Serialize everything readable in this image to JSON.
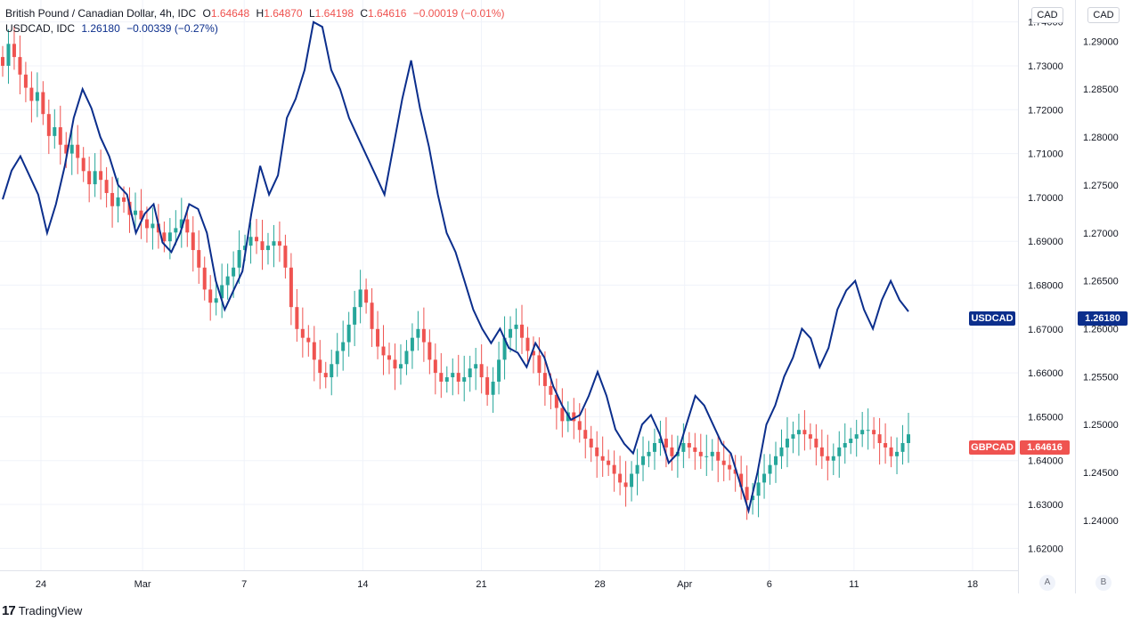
{
  "legend": {
    "main": {
      "symbol": "British Pound / Canadian Dollar, 4h, IDC",
      "o_label": "O",
      "o": "1.64648",
      "h_label": "H",
      "h": "1.64870",
      "l_label": "L",
      "l": "1.64198",
      "c_label": "C",
      "c": "1.64616",
      "change": "−0.00019 (−0.01%)"
    },
    "second": {
      "symbol": "USDCAD, IDC",
      "value": "1.26180",
      "change": "−0.00339 (−0.27%)"
    }
  },
  "axes": {
    "currency_a": "CAD",
    "currency_b": "CAD",
    "scale_a_label": "A",
    "scale_b_label": "B",
    "left_ticks": [
      "1.74000",
      "1.73000",
      "1.72000",
      "1.71000",
      "1.70000",
      "1.69000",
      "1.68000",
      "1.67000",
      "1.66000",
      "1.65000",
      "1.64000",
      "1.63000",
      "1.62000"
    ],
    "right_ticks": [
      "1.29000",
      "1.28500",
      "1.28000",
      "1.27500",
      "1.27000",
      "1.26500",
      "1.26000",
      "1.25500",
      "1.25000",
      "1.24500",
      "1.24000"
    ],
    "x_ticks": [
      "24",
      "Mar",
      "7",
      "14",
      "21",
      "28",
      "Apr",
      "6",
      "11",
      "18"
    ]
  },
  "tags": {
    "usdcad_label": "USDCAD",
    "usdcad_value": "1.26180",
    "gbpcad_label": "GBPCAD",
    "gbpcad_value": "1.64616"
  },
  "footer": {
    "brand": "TradingView",
    "logo": "17"
  },
  "colors": {
    "up": "#26a69a",
    "down": "#ef5350",
    "line": "#0b2e8c",
    "grid": "#f0f3fa"
  },
  "chart_data": [
    {
      "type": "candlestick",
      "name": "GBPCAD",
      "y_axis": "A",
      "ylim": [
        1.615,
        1.745
      ],
      "x_range_days": [
        0,
        54
      ],
      "x_ticks_days": {
        "24": 3,
        "Mar": 9,
        "7": 15,
        "14": 22,
        "21": 29,
        "28": 36,
        "Apr": 41,
        "6": 46,
        "11": 51,
        "18": 58
      },
      "close": [
        1.73,
        1.735,
        1.732,
        1.728,
        1.725,
        1.722,
        1.724,
        1.719,
        1.714,
        1.716,
        1.712,
        1.71,
        1.712,
        1.709,
        1.706,
        1.703,
        1.706,
        1.704,
        1.701,
        1.698,
        1.7,
        1.699,
        1.696,
        1.697,
        1.695,
        1.693,
        1.694,
        1.692,
        1.69,
        1.692,
        1.693,
        1.695,
        1.692,
        1.688,
        1.684,
        1.679,
        1.676,
        1.677,
        1.68,
        1.682,
        1.684,
        1.688,
        1.689,
        1.691,
        1.69,
        1.688,
        1.689,
        1.69,
        1.689,
        1.684,
        1.675,
        1.67,
        1.668,
        1.667,
        1.663,
        1.66,
        1.659,
        1.662,
        1.665,
        1.667,
        1.671,
        1.675,
        1.679,
        1.676,
        1.67,
        1.666,
        1.664,
        1.663,
        1.661,
        1.662,
        1.665,
        1.668,
        1.67,
        1.667,
        1.663,
        1.66,
        1.658,
        1.659,
        1.66,
        1.658,
        1.659,
        1.661,
        1.662,
        1.659,
        1.655,
        1.658,
        1.663,
        1.668,
        1.67,
        1.671,
        1.668,
        1.665,
        1.664,
        1.66,
        1.657,
        1.655,
        1.652,
        1.649,
        1.651,
        1.649,
        1.647,
        1.645,
        1.643,
        1.641,
        1.64,
        1.639,
        1.637,
        1.635,
        1.634,
        1.637,
        1.639,
        1.641,
        1.642,
        1.644,
        1.645,
        1.643,
        1.641,
        1.642,
        1.644,
        1.643,
        1.642,
        1.641,
        1.641,
        1.642,
        1.64,
        1.639,
        1.638,
        1.637,
        1.634,
        1.631,
        1.632,
        1.635,
        1.637,
        1.639,
        1.641,
        1.643,
        1.645,
        1.646,
        1.647,
        1.646,
        1.645,
        1.643,
        1.641,
        1.64,
        1.641,
        1.643,
        1.644,
        1.645,
        1.646,
        1.647,
        1.647,
        1.646,
        1.644,
        1.643,
        1.641,
        1.642,
        1.644,
        1.646
      ]
    },
    {
      "type": "line",
      "name": "USDCAD",
      "y_axis": "B",
      "ylim": [
        1.2348,
        1.2943
      ],
      "values": [
        1.2735,
        1.2765,
        1.278,
        1.276,
        1.274,
        1.27,
        1.273,
        1.277,
        1.282,
        1.285,
        1.283,
        1.28,
        1.278,
        1.275,
        1.274,
        1.27,
        1.272,
        1.273,
        1.269,
        1.268,
        1.27,
        1.273,
        1.2725,
        1.27,
        1.265,
        1.262,
        1.264,
        1.266,
        1.272,
        1.277,
        1.274,
        1.276,
        1.282,
        1.284,
        1.287,
        1.292,
        1.2915,
        1.287,
        1.285,
        1.282,
        1.28,
        1.278,
        1.276,
        1.274,
        1.279,
        1.284,
        1.288,
        1.283,
        1.279,
        1.274,
        1.27,
        1.268,
        1.265,
        1.262,
        1.26,
        1.2585,
        1.26,
        1.258,
        1.2575,
        1.256,
        1.2585,
        1.257,
        1.254,
        1.252,
        1.2505,
        1.251,
        1.253,
        1.2555,
        1.253,
        1.2495,
        1.248,
        1.247,
        1.25,
        1.251,
        1.249,
        1.246,
        1.247,
        1.25,
        1.253,
        1.252,
        1.25,
        1.248,
        1.247,
        1.244,
        1.241,
        1.245,
        1.25,
        1.252,
        1.255,
        1.257,
        1.26,
        1.259,
        1.256,
        1.258,
        1.262,
        1.264,
        1.265,
        1.262,
        1.26,
        1.263,
        1.265,
        1.263,
        1.2618
      ]
    }
  ]
}
